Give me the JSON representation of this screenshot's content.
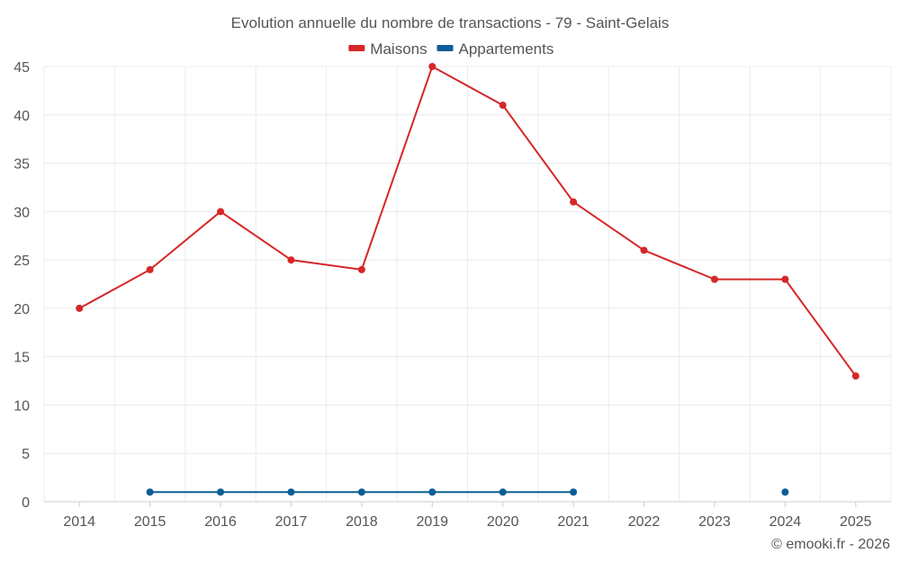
{
  "chart_data": {
    "type": "line",
    "title": "Evolution annuelle du nombre de transactions - 79 - Saint-Gelais",
    "categories": [
      "2014",
      "2015",
      "2016",
      "2017",
      "2018",
      "2019",
      "2020",
      "2021",
      "2022",
      "2023",
      "2024",
      "2025"
    ],
    "ylim": [
      0,
      45
    ],
    "yticks": [
      0,
      5,
      10,
      15,
      20,
      25,
      30,
      35,
      40,
      45
    ],
    "grid": true,
    "legend_position": "top-center",
    "series": [
      {
        "name": "Maisons",
        "color": "#d62728",
        "values": [
          20,
          24,
          30,
          25,
          24,
          45,
          41,
          31,
          26,
          23,
          23,
          13
        ]
      },
      {
        "name": "Appartements",
        "color": "#0b5e96",
        "values": [
          null,
          1,
          1,
          1,
          1,
          1,
          1,
          1,
          null,
          null,
          1,
          null
        ]
      }
    ]
  },
  "credit": "© emooki.fr - 2026"
}
